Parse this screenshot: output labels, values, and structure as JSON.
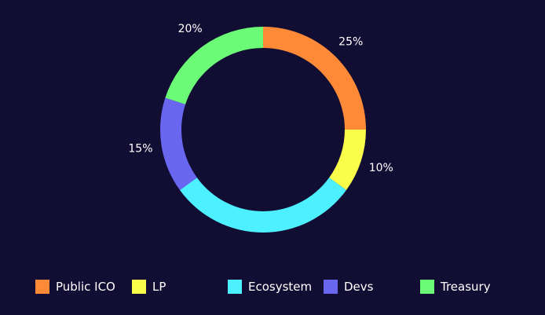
{
  "chart_data": {
    "type": "pie",
    "style": "donut",
    "categories": [
      "Public ICO",
      "LP",
      "Ecosystem",
      "Devs",
      "Treasury"
    ],
    "values": [
      25,
      10,
      30,
      15,
      20
    ],
    "labels": [
      "25%",
      "10%",
      "",
      "15%",
      "20%"
    ],
    "colors": [
      "#fe8a38",
      "#fbfd4b",
      "#4cf0ff",
      "#6966f0",
      "#6bfb77"
    ],
    "legend_position": "bottom"
  },
  "theme": {
    "background": "#120e33",
    "text": "#ffffff"
  }
}
